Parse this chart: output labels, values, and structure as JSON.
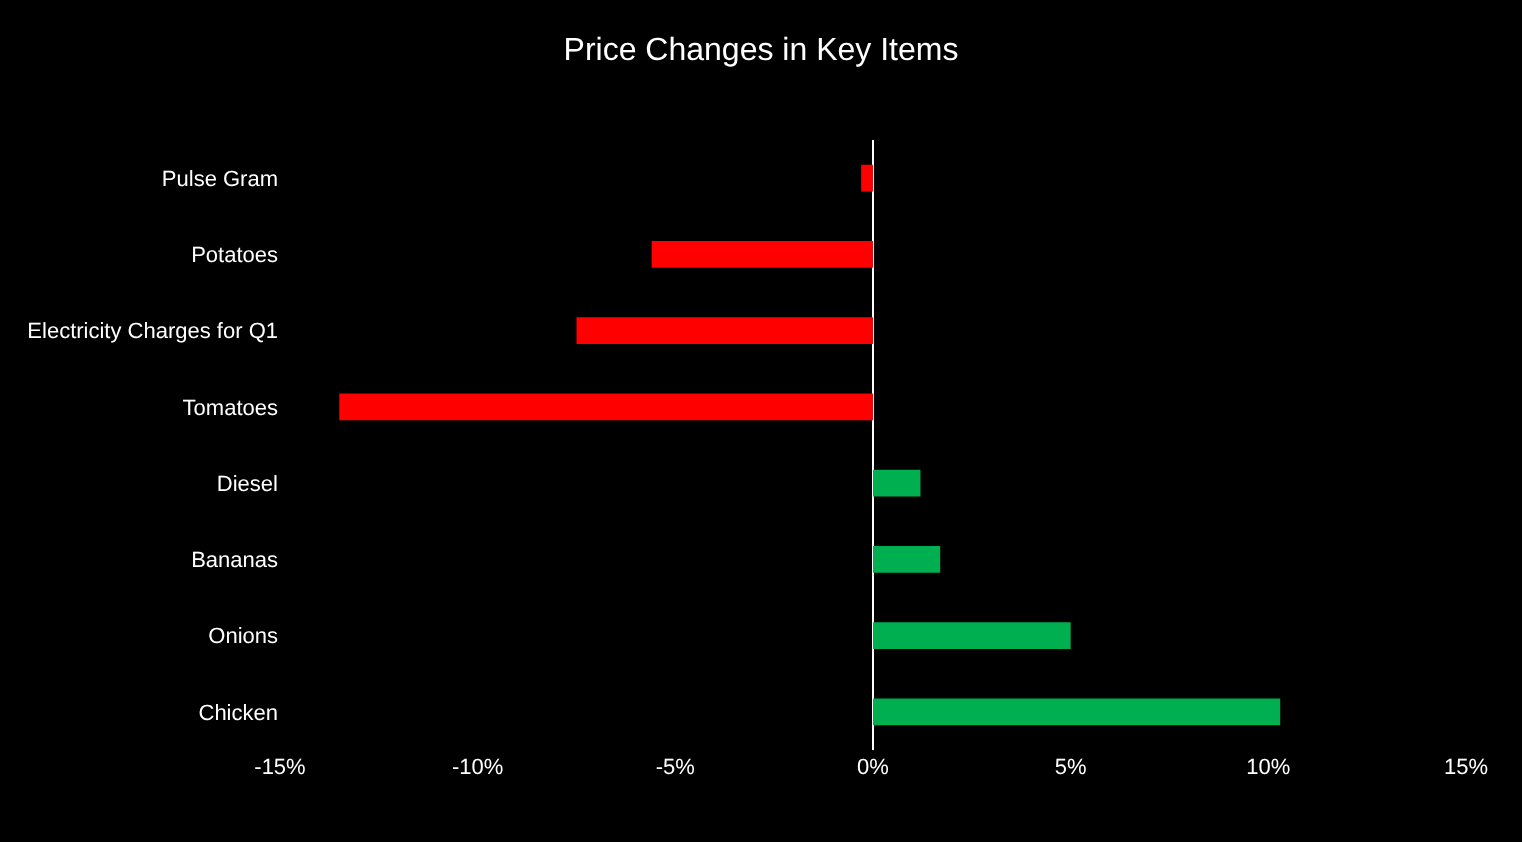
{
  "chart_data": {
    "type": "bar",
    "orientation": "horizontal",
    "title": "Price Changes in Key Items",
    "categories": [
      "Pulse Gram",
      "Potatoes",
      "Electricity Charges for Q1",
      "Tomatoes",
      "Diesel",
      "Bananas",
      "Onions",
      "Chicken"
    ],
    "values": [
      -0.3,
      -5.6,
      -7.5,
      -13.5,
      1.2,
      1.7,
      5.0,
      10.3
    ],
    "colors": [
      "#ff0000",
      "#ff0000",
      "#ff0000",
      "#ff0000",
      "#00b050",
      "#00b050",
      "#00b050",
      "#00b050"
    ],
    "xlim": [
      -15,
      15
    ],
    "xticks": [
      {
        "value": -15,
        "label": "-15%"
      },
      {
        "value": -10,
        "label": "-10%"
      },
      {
        "value": -5,
        "label": "-5%"
      },
      {
        "value": 0,
        "label": "0%"
      },
      {
        "value": 5,
        "label": "5%"
      },
      {
        "value": 10,
        "label": "10%"
      },
      {
        "value": 15,
        "label": "15%"
      }
    ],
    "legend": false
  }
}
